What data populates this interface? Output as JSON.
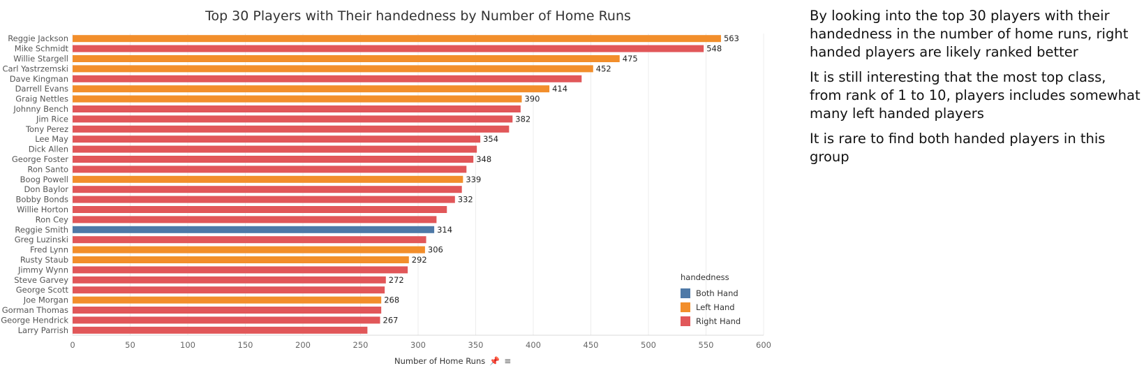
{
  "chart_data": {
    "type": "bar",
    "orientation": "horizontal",
    "title": "Top 30 Players with Their handedness by Number of Home Runs",
    "xlabel": "Number of Home Runs",
    "xlim": [
      0,
      600
    ],
    "xticks": [
      0,
      50,
      100,
      150,
      200,
      250,
      300,
      350,
      400,
      450,
      500,
      550,
      600
    ],
    "grid": "vertical",
    "legend": {
      "title": "handedness",
      "position": "bottom-right",
      "items": [
        {
          "name": "Both Hand",
          "color": "#4e79a7"
        },
        {
          "name": "Left Hand",
          "color": "#f28e2b"
        },
        {
          "name": "Right Hand",
          "color": "#e15759"
        }
      ]
    },
    "bars": [
      {
        "player": "Reggie Jackson",
        "value": 563,
        "hand": "Left Hand",
        "label": "563"
      },
      {
        "player": "Mike Schmidt",
        "value": 548,
        "hand": "Right Hand",
        "label": "548"
      },
      {
        "player": "Willie Stargell",
        "value": 475,
        "hand": "Left Hand",
        "label": "475"
      },
      {
        "player": "Carl Yastrzemski",
        "value": 452,
        "hand": "Left Hand",
        "label": "452"
      },
      {
        "player": "Dave Kingman",
        "value": 442,
        "hand": "Right Hand",
        "label": ""
      },
      {
        "player": "Darrell Evans",
        "value": 414,
        "hand": "Left Hand",
        "label": "414"
      },
      {
        "player": "Graig Nettles",
        "value": 390,
        "hand": "Left Hand",
        "label": "390"
      },
      {
        "player": "Johnny Bench",
        "value": 389,
        "hand": "Right Hand",
        "label": ""
      },
      {
        "player": "Jim Rice",
        "value": 382,
        "hand": "Right Hand",
        "label": "382"
      },
      {
        "player": "Tony Perez",
        "value": 379,
        "hand": "Right Hand",
        "label": ""
      },
      {
        "player": "Lee May",
        "value": 354,
        "hand": "Right Hand",
        "label": "354"
      },
      {
        "player": "Dick Allen",
        "value": 351,
        "hand": "Right Hand",
        "label": ""
      },
      {
        "player": "George Foster",
        "value": 348,
        "hand": "Right Hand",
        "label": "348"
      },
      {
        "player": "Ron Santo",
        "value": 342,
        "hand": "Right Hand",
        "label": ""
      },
      {
        "player": "Boog Powell",
        "value": 339,
        "hand": "Left Hand",
        "label": "339"
      },
      {
        "player": "Don Baylor",
        "value": 338,
        "hand": "Right Hand",
        "label": ""
      },
      {
        "player": "Bobby Bonds",
        "value": 332,
        "hand": "Right Hand",
        "label": "332"
      },
      {
        "player": "Willie Horton",
        "value": 325,
        "hand": "Right Hand",
        "label": ""
      },
      {
        "player": "Ron Cey",
        "value": 316,
        "hand": "Right Hand",
        "label": ""
      },
      {
        "player": "Reggie Smith",
        "value": 314,
        "hand": "Both Hand",
        "label": "314"
      },
      {
        "player": "Greg Luzinski",
        "value": 307,
        "hand": "Right Hand",
        "label": ""
      },
      {
        "player": "Fred Lynn",
        "value": 306,
        "hand": "Left Hand",
        "label": "306"
      },
      {
        "player": "Rusty Staub",
        "value": 292,
        "hand": "Left Hand",
        "label": "292"
      },
      {
        "player": "Jimmy Wynn",
        "value": 291,
        "hand": "Right Hand",
        "label": ""
      },
      {
        "player": "Steve Garvey",
        "value": 272,
        "hand": "Right Hand",
        "label": "272"
      },
      {
        "player": "George Scott",
        "value": 271,
        "hand": "Right Hand",
        "label": ""
      },
      {
        "player": "Joe Morgan",
        "value": 268,
        "hand": "Left Hand",
        "label": "268"
      },
      {
        "player": "Gorman Thomas",
        "value": 268,
        "hand": "Right Hand",
        "label": ""
      },
      {
        "player": "George Hendrick",
        "value": 267,
        "hand": "Right Hand",
        "label": "267"
      },
      {
        "player": "Larry Parrish",
        "value": 256,
        "hand": "Right Hand",
        "label": ""
      }
    ]
  },
  "notes": [
    "By looking into the top 30 players with their handedness in the number of home runs, right handed players are likely ranked better",
    "It is still interesting that the most top class, from rank of 1 to 10, players includes somewhat many left handed players",
    "It is rare to find both handed players in this group"
  ],
  "icons": [
    "pin-icon",
    "sort-icon"
  ]
}
